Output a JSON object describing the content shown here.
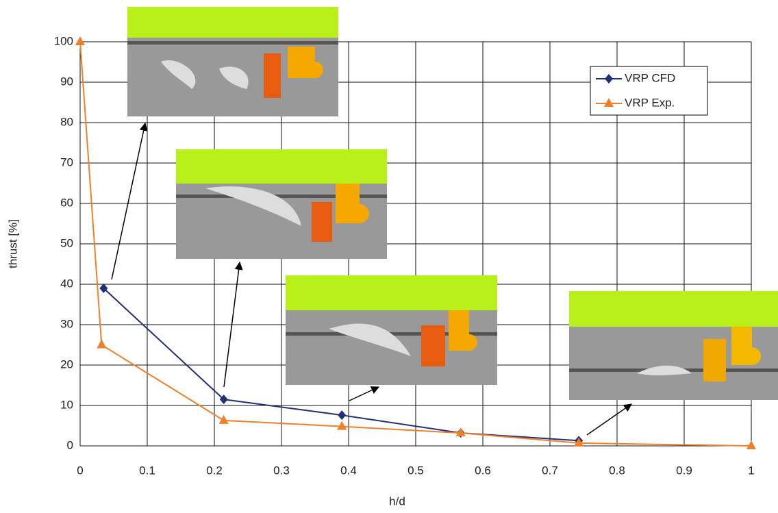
{
  "chart_data": {
    "type": "line",
    "x_label": "h/d",
    "y_label": "thrust [%]",
    "xlim": [
      0,
      1
    ],
    "xticks": [
      0,
      0.1,
      0.2,
      0.3,
      0.4,
      0.5,
      0.6,
      0.7,
      0.8,
      0.9,
      1
    ],
    "ylim": [
      0,
      100
    ],
    "yticks": [
      0,
      10,
      20,
      30,
      40,
      50,
      60,
      70,
      80,
      90,
      100
    ],
    "grid": true,
    "legend": "upper right",
    "series": [
      {
        "name": "VRP CFD",
        "color": "#1f2f7a",
        "marker": "diamond",
        "x": [
          0.035,
          0.214,
          0.39,
          0.567,
          0.743
        ],
        "values": [
          39,
          11.5,
          7.6,
          3.2,
          1.3
        ]
      },
      {
        "name": "VRP Exp.",
        "color": "#f07f2a",
        "marker": "triangle",
        "x": [
          0,
          0.032,
          0.214,
          0.39,
          0.567,
          0.743,
          1
        ],
        "values": [
          100,
          25,
          6.3,
          4.8,
          3.2,
          0.7,
          0
        ]
      }
    ]
  }
}
